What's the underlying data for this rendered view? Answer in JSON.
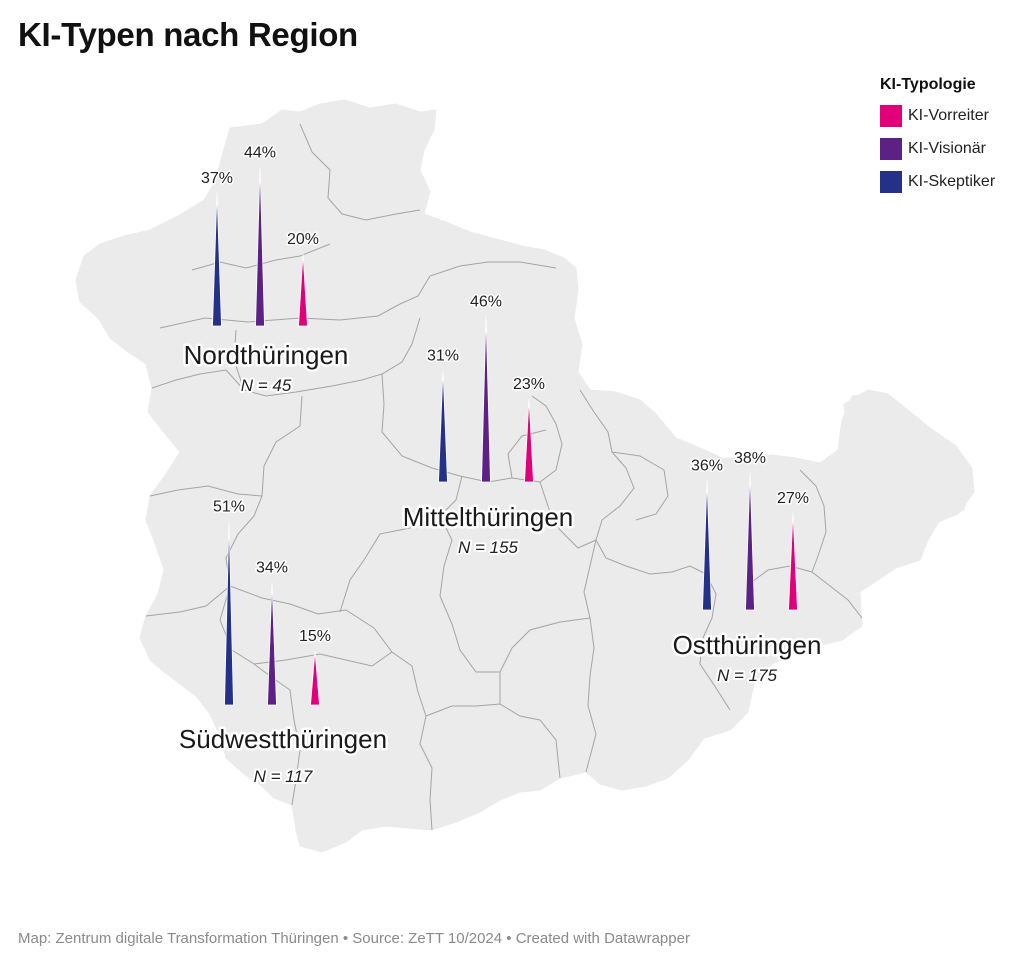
{
  "title": "KI-Typen nach Region",
  "legend": {
    "title": "KI-Typologie",
    "items": [
      {
        "label": "KI-Vorreiter",
        "color": "#e2007a"
      },
      {
        "label": "KI-Visionär",
        "color": "#5b2185"
      },
      {
        "label": "KI-Skeptiker",
        "color": "#253189"
      }
    ]
  },
  "footer": "Map: Zentrum digitale Transformation Thüringen • Source: ZeTT 10/2024 • Created with Datawrapper",
  "map_colors": {
    "land": "#ebebeb",
    "border": "#a4a4a4"
  },
  "chart_data": {
    "type": "spike-map",
    "series_order": [
      "KI-Skeptiker",
      "KI-Visionär",
      "KI-Vorreiter"
    ],
    "regions": [
      {
        "name": "Nordthüringen",
        "n_label": "N = 45",
        "values": [
          37,
          44,
          20
        ],
        "value_labels": [
          "37%",
          "44%",
          "20%"
        ]
      },
      {
        "name": "Mittelthüringen",
        "n_label": "N = 155",
        "values": [
          31,
          46,
          23
        ],
        "value_labels": [
          "31%",
          "46%",
          "23%"
        ]
      },
      {
        "name": "Südwestthüringen",
        "n_label": "N = 117",
        "values": [
          51,
          34,
          15
        ],
        "value_labels": [
          "51%",
          "34%",
          "15%"
        ]
      },
      {
        "name": "Ostthüringen",
        "n_label": "N = 175",
        "values": [
          36,
          38,
          27
        ],
        "value_labels": [
          "36%",
          "38%",
          "27%"
        ]
      }
    ]
  }
}
